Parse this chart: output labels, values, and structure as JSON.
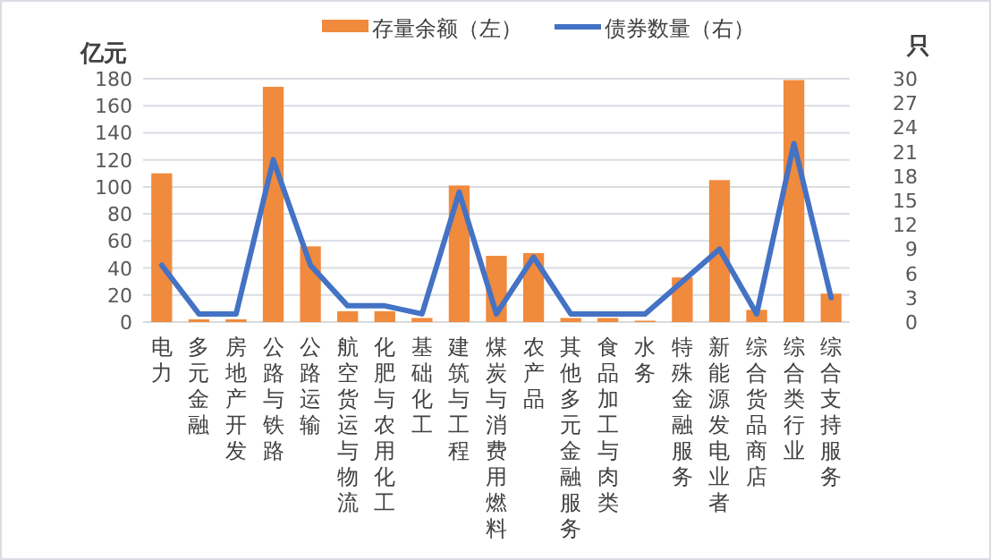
{
  "chart_data": {
    "type": "bar",
    "ylabel": "亿元",
    "y2label": "只",
    "categories": [
      "电力",
      "多元金融",
      "房地产开发",
      "公路与铁路",
      "公路运输",
      "航空货运与物流",
      "化肥与农用化工",
      "基础化工",
      "建筑与工程",
      "煤炭与消费用燃料",
      "农产品",
      "其他多元金融服务",
      "食品加工与肉类",
      "水务",
      "特殊金融服务",
      "新能源发电业者",
      "综合货品商店",
      "综合类行业",
      "综合支持服务"
    ],
    "series": [
      {
        "name": "存量余额（左）",
        "color": "#f08a3c",
        "values": [
          110,
          2,
          2,
          174,
          56,
          8,
          8,
          3,
          101,
          49,
          51,
          3,
          3,
          1,
          33,
          105,
          9,
          179,
          21
        ]
      },
      {
        "name": "债券数量（右）",
        "type": "line",
        "axis": "y2",
        "color": "#4472c4",
        "values": [
          7,
          1,
          1,
          20,
          7,
          2,
          2,
          1,
          16,
          1,
          8,
          1,
          1,
          1,
          5,
          9,
          1,
          22,
          3
        ]
      }
    ],
    "ylim": [
      0,
      180
    ],
    "yticks": [
      0,
      20,
      40,
      60,
      80,
      100,
      120,
      140,
      160,
      180
    ],
    "y2lim": [
      0,
      30
    ],
    "y2ticks": [
      0,
      3,
      6,
      9,
      12,
      15,
      18,
      21,
      24,
      27,
      30
    ],
    "grid": "y",
    "legend": "top"
  }
}
